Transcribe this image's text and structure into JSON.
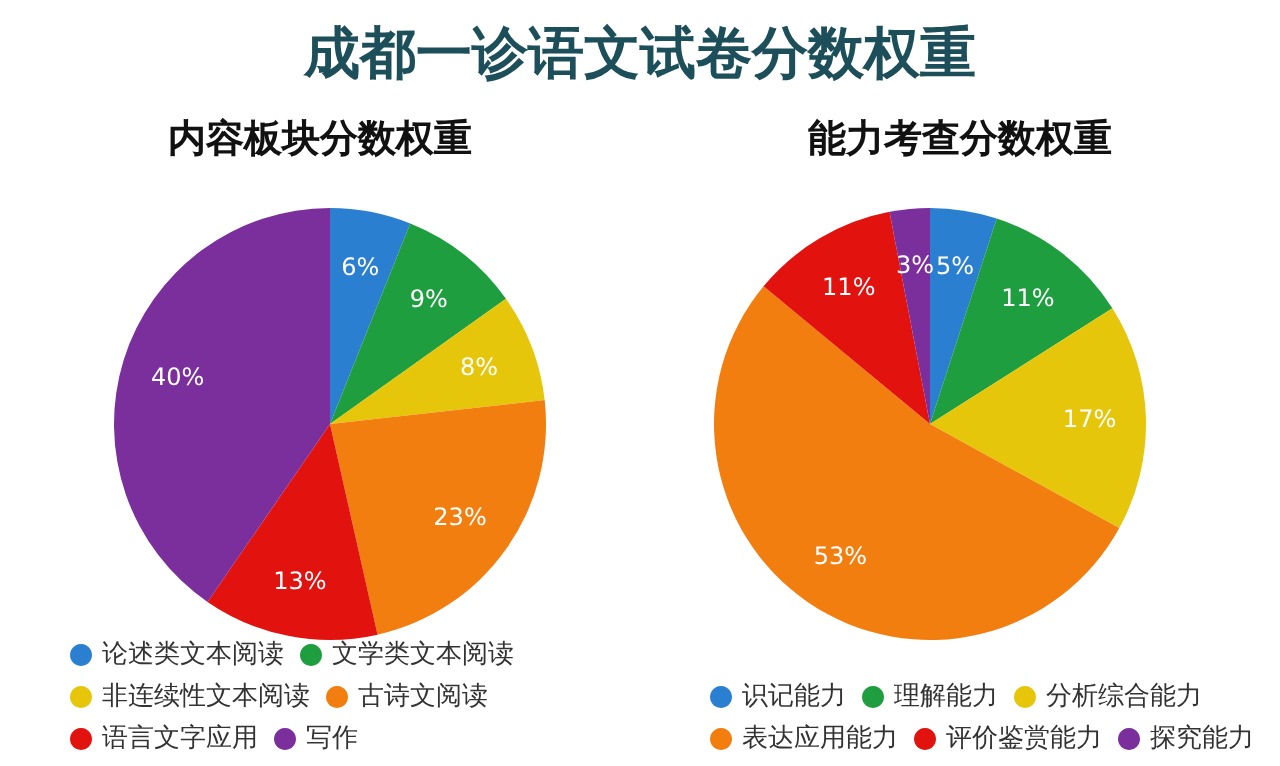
{
  "chart_data": [
    {
      "type": "pie",
      "title": "成都一诊语文试卷分数权重",
      "subtitle": "内容板块分数权重",
      "categories": [
        "论述类文本阅读",
        "文学类文本阅读",
        "非连续性文本阅读",
        "古诗文阅读",
        "语言文字应用",
        "写作"
      ],
      "values": [
        6,
        9,
        8,
        23,
        13,
        40
      ],
      "colors": [
        "#2a7fd0",
        "#1f9e3f",
        "#e6c60a",
        "#f27e10",
        "#e2120f",
        "#7a2f9c"
      ],
      "value_labels": [
        "6%",
        "9%",
        "8%",
        "23%",
        "13%",
        "40%"
      ],
      "legend": "bottom"
    },
    {
      "type": "pie",
      "title": "能力考查分数权重",
      "categories": [
        "识记能力",
        "理解能力",
        "分析综合能力",
        "表达应用能力",
        "评价鉴赏能力",
        "探究能力"
      ],
      "values": [
        5,
        11,
        17,
        53,
        11,
        3
      ],
      "colors": [
        "#2a7fd0",
        "#1f9e3f",
        "#e6c60a",
        "#f27e10",
        "#e2120f",
        "#7a2f9c"
      ],
      "value_labels": [
        "5%",
        "11%",
        "17%",
        "53%",
        "11%",
        "3%"
      ],
      "legend": "bottom"
    }
  ]
}
